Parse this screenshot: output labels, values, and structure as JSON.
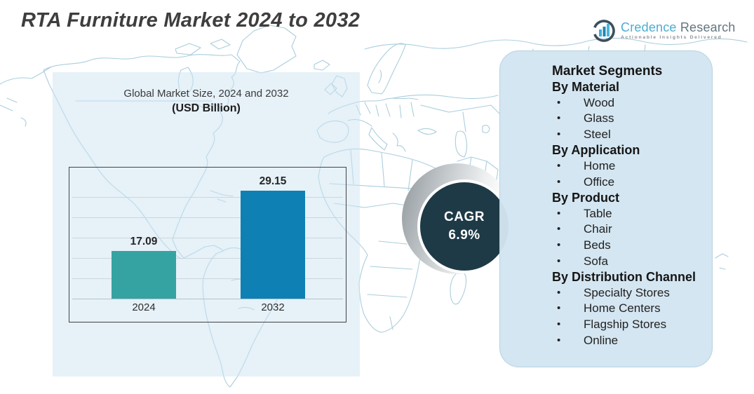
{
  "title": "RTA Furniture Market 2024 to 2032",
  "logo": {
    "brand_part1": "Credence",
    "brand_part2": " Research",
    "tagline": "Actionable Insights Delivered",
    "icon": "bar-chart-circle-icon",
    "brand_color": "#49aed3",
    "brand_color2": "#64747f"
  },
  "chart_data": {
    "type": "bar",
    "title": "Global Market Size, 2024 and 2032",
    "subtitle": "(USD Billion)",
    "categories": [
      "2024",
      "2032"
    ],
    "values": [
      17.09,
      29.15
    ],
    "value_labels": [
      "17.09",
      "29.15"
    ],
    "series": [
      {
        "name": "Global Market Size (USD Billion)",
        "values": [
          17.09,
          29.15
        ]
      }
    ],
    "bar_colors": [
      "#35a3a1",
      "#0e80b4"
    ],
    "ylim": [
      7.5,
      31
    ],
    "grid": true,
    "legend": false,
    "xlabel": "",
    "ylabel": ""
  },
  "cagr": {
    "label": "CAGR",
    "value": "6.9%",
    "circle_color": "#1e3a47"
  },
  "segments": {
    "title": "Market Segments",
    "groups": [
      {
        "label": "By Material",
        "items": [
          "Wood",
          "Glass",
          "Steel"
        ]
      },
      {
        "label": "By Application",
        "items": [
          "Home",
          "Office"
        ]
      },
      {
        "label": "By Product",
        "items": [
          "Table",
          "Chair",
          "Beds",
          "Sofa"
        ]
      },
      {
        "label": "By Distribution Channel",
        "items": [
          "Specialty Stores",
          "Home Centers",
          "Flagship Stores",
          "Online"
        ]
      }
    ]
  },
  "colors": {
    "bar_2024": "#35a3a1",
    "bar_2032": "#0e80b4",
    "cagr_circle": "#1e3a47",
    "panel_blue": "#d2e5f0",
    "map_line": "#abcedd"
  }
}
